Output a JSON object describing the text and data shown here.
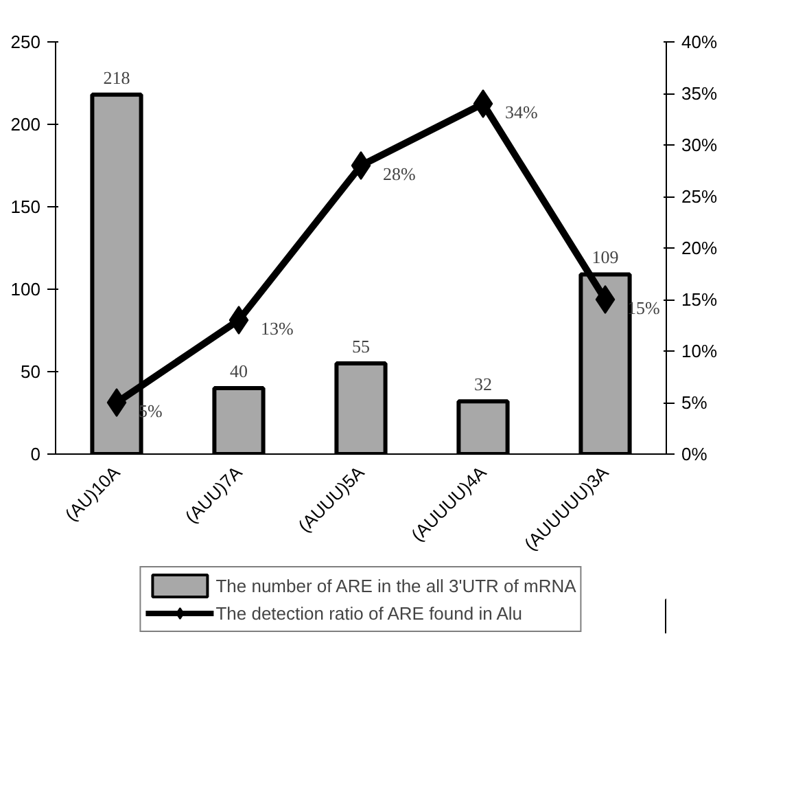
{
  "chart_data": {
    "type": "bar",
    "categories": [
      "(AU)10A",
      "(AUU)7A",
      "(AUUU)5A",
      "(AUUUU)4A",
      "(AUUUUU)3A"
    ],
    "series": [
      {
        "name": "The number of ARE in the all 3'UTR of mRNA",
        "color": "#a8a8a8",
        "values": [
          218,
          40,
          55,
          32,
          109
        ]
      },
      {
        "name": "The detection ratio of ARE found in Alu",
        "type": "line",
        "axis": "y2",
        "color": "#000000",
        "marker": "diamond",
        "values": [
          5,
          13,
          28,
          34,
          15
        ],
        "value_labels": [
          "5%",
          "13%",
          "28%",
          "34%",
          "15%"
        ]
      }
    ],
    "ylim": [
      0,
      250
    ],
    "yticks": [
      0,
      50,
      100,
      150,
      200,
      250
    ],
    "y2lim": [
      0,
      40
    ],
    "y2ticks": [
      {
        "value": 0,
        "label": "0%"
      },
      {
        "value": 5,
        "label": "5%"
      },
      {
        "value": 10,
        "label": "10%"
      },
      {
        "value": 15,
        "label": "15%"
      },
      {
        "value": 20,
        "label": "20%"
      },
      {
        "value": 25,
        "label": "25%"
      },
      {
        "value": 30,
        "label": "30%"
      },
      {
        "value": 35,
        "label": "35%"
      },
      {
        "value": 40,
        "label": "40%"
      }
    ],
    "data_labels": true,
    "grid": false,
    "legend": "bottom"
  }
}
